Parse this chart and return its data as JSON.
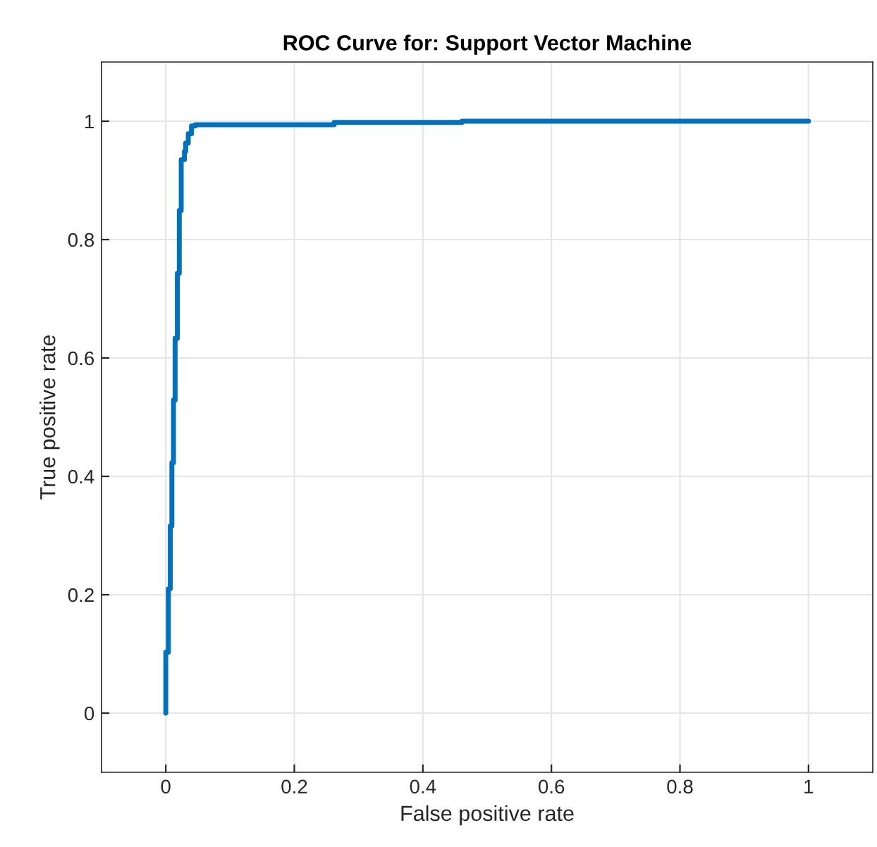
{
  "chart_data": {
    "type": "step",
    "title": "ROC Curve for: Support Vector Machine",
    "xlabel": "False positive rate",
    "ylabel": "True positive rate",
    "series": [
      {
        "color": "#0072bd",
        "x": [
          0,
          0,
          0.004,
          0.004,
          0.007,
          0.007,
          0.0095,
          0.0095,
          0.012,
          0.012,
          0.0145,
          0.0145,
          0.018,
          0.018,
          0.021,
          0.021,
          0.024,
          0.024,
          0.029,
          0.029,
          0.031,
          0.031,
          0.035,
          0.035,
          0.04,
          0.04,
          0.046,
          0.046,
          0.058,
          0.262,
          0.262,
          0.461,
          0.461,
          1
        ],
        "values": [
          0,
          0.103,
          0.103,
          0.21,
          0.21,
          0.316,
          0.316,
          0.423,
          0.423,
          0.529,
          0.529,
          0.633,
          0.633,
          0.743,
          0.743,
          0.849,
          0.849,
          0.935,
          0.935,
          0.949,
          0.949,
          0.963,
          0.963,
          0.979,
          0.979,
          0.992,
          0.992,
          0.994,
          0.994,
          0.994,
          0.998,
          0.998,
          1,
          1
        ]
      }
    ],
    "xlim": [
      -0.1,
      1.1
    ],
    "ylim": [
      -0.1,
      1.1
    ],
    "xticks": [
      0,
      0.2,
      0.4,
      0.6,
      0.8,
      1
    ],
    "yticks": [
      0,
      0.2,
      0.4,
      0.6,
      0.8,
      1
    ],
    "grid": true
  }
}
